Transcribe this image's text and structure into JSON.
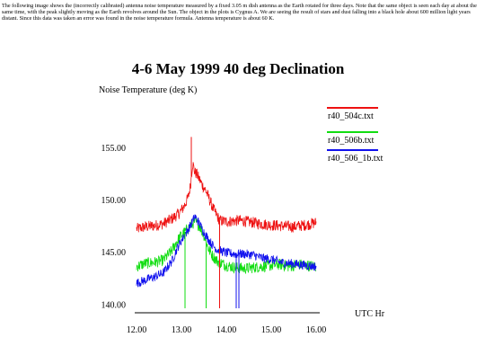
{
  "description": "The following image shows the (incorrectly calibrated) antenna noise temperature measured by a fixed 3.05 m dish antenna as the Earth rotated for three days. Note that the same object is seen each day at about the same time, with the peak slightly moving as the Earth revolves around the Sun. The object in the plots is Cygnus A. We are seeing the result of stars and dust falling into a black hole about 600 million light years distant. Since this data was taken an error was found in the noise temperature formula. Antenna temperature is about 60 K.",
  "chart_data": {
    "type": "line",
    "title": "4-6 May 1999 40 deg Declination",
    "ylabel": "Noise Temperature (deg K)",
    "xlabel": "UTC Hr",
    "xlim": [
      12.0,
      16.0
    ],
    "ylim": [
      139.6,
      156.2
    ],
    "x_ticks": [
      12.0,
      13.0,
      14.0,
      15.0,
      16.0
    ],
    "x_tick_labels": [
      "12.00",
      "13.00",
      "14.00",
      "15.00",
      "16.00"
    ],
    "y_ticks": [
      140.0,
      145.0,
      150.0,
      155.0
    ],
    "y_tick_labels": [
      "140.00",
      "145.00",
      "150.00",
      "155.00"
    ],
    "grid": false,
    "legend_position": "top-right",
    "series": [
      {
        "name": "r40_504c.txt",
        "color": "#ee1111",
        "x": [
          12.0,
          12.2,
          12.4,
          12.6,
          12.8,
          12.95,
          13.05,
          13.15,
          13.2,
          13.25,
          13.3,
          13.35,
          13.45,
          13.55,
          13.7,
          13.85,
          14.0,
          14.3,
          14.6,
          14.9,
          15.2,
          15.5,
          15.8,
          16.0
        ],
        "y": [
          147.2,
          147.4,
          147.5,
          147.7,
          148.2,
          148.7,
          149.3,
          150.2,
          151.3,
          153.5,
          152.6,
          152.4,
          151.5,
          150.8,
          149.2,
          148.0,
          147.9,
          148.0,
          147.8,
          147.6,
          147.5,
          147.4,
          147.6,
          147.8
        ]
      },
      {
        "name": "r40_506b.txt",
        "color": "#11dd11",
        "x": [
          12.0,
          12.2,
          12.4,
          12.6,
          12.8,
          12.9,
          13.0,
          13.1,
          13.2,
          13.3,
          13.4,
          13.5,
          13.6,
          13.7,
          13.8,
          14.0,
          14.2,
          14.4,
          14.6,
          14.8,
          15.0,
          15.2,
          15.4,
          15.6,
          15.8,
          16.0
        ],
        "y": [
          143.6,
          143.9,
          144.0,
          144.2,
          145.2,
          146.0,
          146.6,
          147.0,
          147.5,
          147.9,
          147.5,
          146.6,
          145.3,
          144.6,
          144.1,
          143.7,
          143.5,
          143.4,
          143.5,
          143.6,
          143.7,
          143.8,
          143.6,
          143.8,
          143.7,
          143.6
        ]
      },
      {
        "name": "r40_506_1b.txt",
        "color": "#1111ee",
        "x": [
          12.0,
          12.2,
          12.4,
          12.6,
          12.8,
          12.9,
          13.0,
          13.1,
          13.2,
          13.3,
          13.4,
          13.5,
          13.6,
          13.7,
          13.8,
          14.0,
          14.2,
          14.4,
          14.6,
          14.8,
          15.0,
          15.2,
          15.4,
          15.6,
          15.8,
          16.0
        ],
        "y": [
          142.0,
          142.3,
          142.6,
          143.0,
          144.2,
          145.3,
          146.1,
          146.8,
          147.5,
          148.4,
          147.7,
          146.9,
          146.2,
          145.6,
          145.2,
          144.9,
          144.8,
          144.8,
          144.7,
          144.4,
          144.3,
          144.0,
          143.9,
          143.8,
          143.7,
          143.6
        ]
      }
    ]
  }
}
